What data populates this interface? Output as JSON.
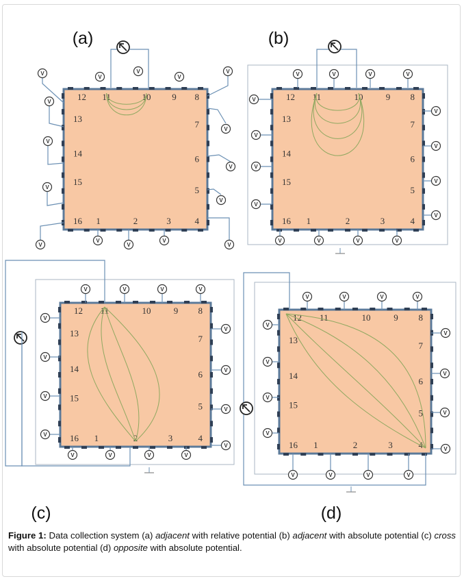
{
  "panels": [
    {
      "id": "a",
      "label": "(a)",
      "pins": [
        "1",
        "2",
        "3",
        "4",
        "5",
        "6",
        "7",
        "8",
        "9",
        "10",
        "11",
        "12",
        "13",
        "14",
        "15",
        "16"
      ]
    },
    {
      "id": "b",
      "label": "(b)",
      "pins": [
        "1",
        "2",
        "3",
        "4",
        "5",
        "6",
        "7",
        "8",
        "9",
        "10",
        "11",
        "12",
        "13",
        "14",
        "15",
        "16"
      ]
    },
    {
      "id": "c",
      "label": "(c)",
      "pins": [
        "1",
        "2",
        "3",
        "4",
        "5",
        "6",
        "7",
        "8",
        "9",
        "10",
        "11",
        "12",
        "13",
        "14",
        "15",
        "16"
      ]
    },
    {
      "id": "d",
      "label": "(d)",
      "pins": [
        "1",
        "2",
        "3",
        "4",
        "5",
        "6",
        "7",
        "8",
        "9",
        "10",
        "11",
        "12",
        "13",
        "14",
        "15",
        "16"
      ]
    }
  ],
  "voltmeter_symbol": "V",
  "icons": {
    "voltmeter": "voltmeter-icon",
    "current_source": "current-source-icon",
    "ground": "ground-icon"
  },
  "colors": {
    "plate": "#f8c8a4",
    "plate_border": "#5b7a9a",
    "wire": "#6a8fb3",
    "field_lines": "#8fa860",
    "frame": "#a9b6c3"
  },
  "caption": {
    "prefix": "Figure 1:",
    "parts": [
      {
        "text": " Data collection system (a) ",
        "italic": false
      },
      {
        "text": "adjacent",
        "italic": true
      },
      {
        "text": " with relative potential (b) ",
        "italic": false
      },
      {
        "text": "adjacent",
        "italic": true
      },
      {
        "text": " with absolute potential (c) ",
        "italic": false
      },
      {
        "text": "cross",
        "italic": true
      },
      {
        "text": " with absolute potential (d) ",
        "italic": false
      },
      {
        "text": "opposite",
        "italic": true
      },
      {
        "text": " with absolute potential.",
        "italic": false
      }
    ]
  }
}
